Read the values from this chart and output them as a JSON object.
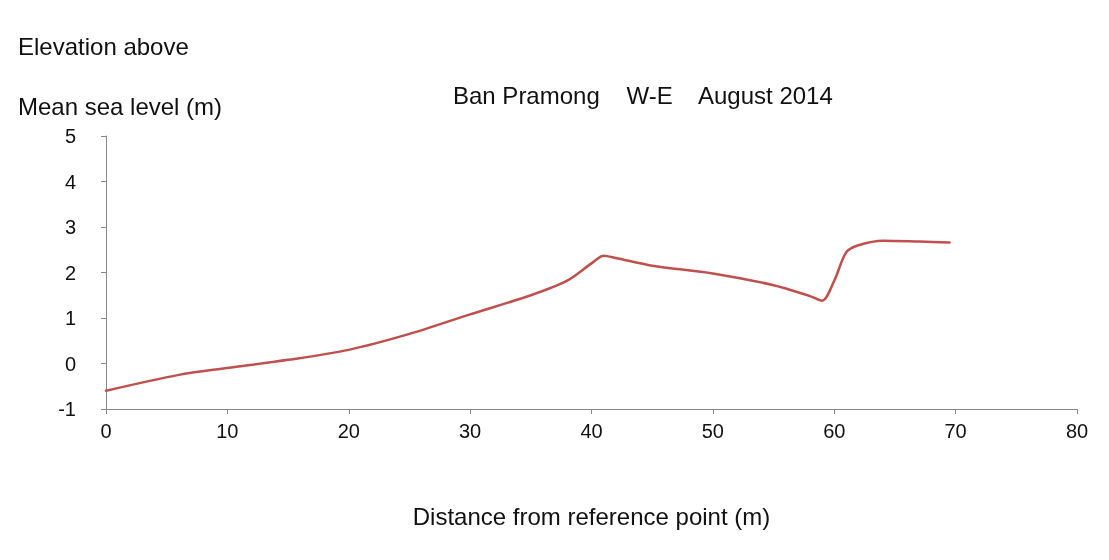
{
  "chart_data": {
    "type": "line",
    "title": "Ban Pramong    W-E    August 2014",
    "xlabel": "Distance from reference point (m)",
    "ylabel": "Elevation above\nMean sea level (m)",
    "series": [
      {
        "color": "#c0504d",
        "x": [
          0,
          6,
          10,
          15,
          20,
          25,
          30,
          35,
          38,
          40,
          41,
          42,
          45,
          50,
          55,
          58,
          59,
          60,
          61,
          62,
          64,
          67,
          69.5
        ],
        "values": [
          -0.6,
          -0.25,
          -0.1,
          0.08,
          0.3,
          0.65,
          1.08,
          1.5,
          1.82,
          2.2,
          2.37,
          2.32,
          2.15,
          1.98,
          1.72,
          1.48,
          1.38,
          1.82,
          2.45,
          2.6,
          2.7,
          2.68,
          2.66
        ]
      }
    ],
    "xlim": [
      0,
      80
    ],
    "xticks": [
      0,
      10,
      20,
      30,
      40,
      50,
      60,
      70,
      80
    ],
    "ylim": [
      -1,
      5
    ],
    "yticks": [
      -1,
      0,
      1,
      2,
      3,
      4,
      5
    ],
    "marker": "none",
    "line_style": "solid"
  }
}
